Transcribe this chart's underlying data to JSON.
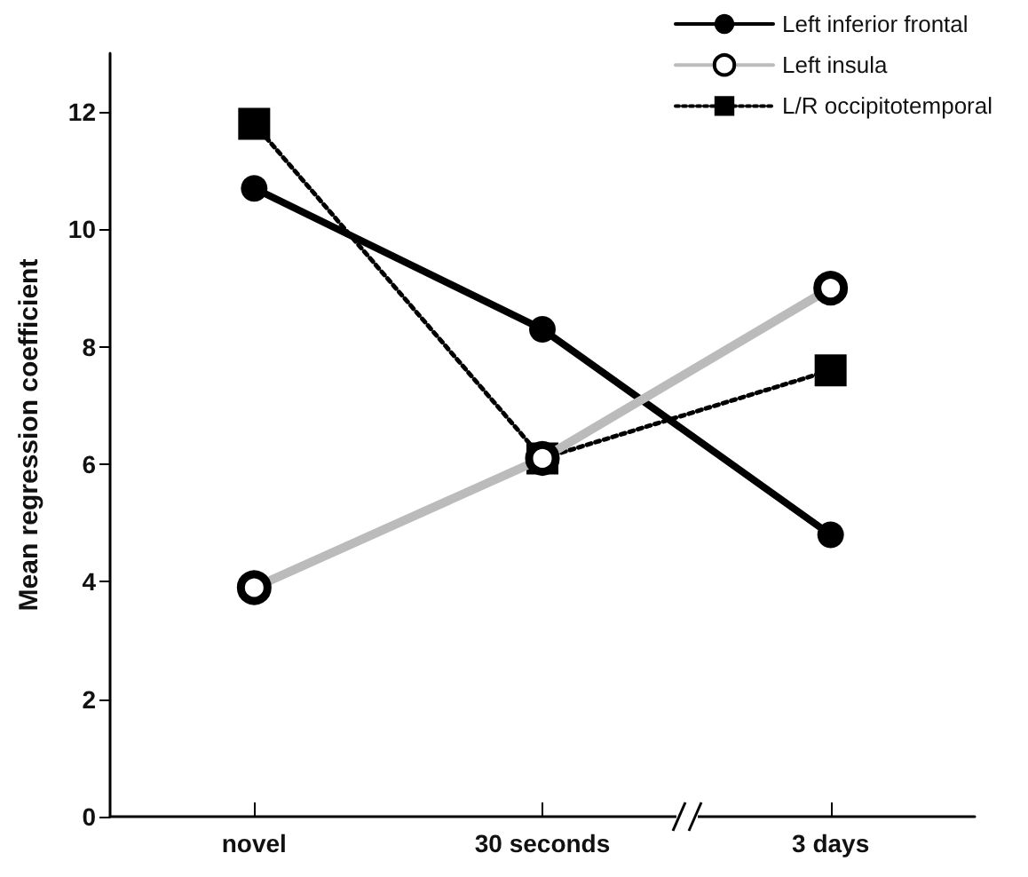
{
  "chart_data": {
    "type": "line",
    "ylabel": "Mean regression coefficient",
    "categories": [
      "novel",
      "30 seconds",
      "3 days"
    ],
    "series": [
      {
        "name": "Left inferior frontal",
        "color": "#000000",
        "values": [
          10.7,
          8.3,
          4.8
        ],
        "marker": "circle",
        "line_style": "solid"
      },
      {
        "name": "Left insula",
        "color": "#bbbbbb",
        "values": [
          3.9,
          6.1,
          9.0
        ],
        "marker": "circle",
        "line_style": "solid"
      },
      {
        "name": "L/R occipitotemporal",
        "color": "#000000",
        "values": [
          11.8,
          6.1,
          7.6
        ],
        "marker": "square",
        "line_style": "dotted"
      }
    ],
    "ylim": [
      0,
      13
    ],
    "yticks": [
      0,
      2,
      4,
      6,
      8,
      10,
      12
    ],
    "grid": false,
    "legend": "top right"
  }
}
